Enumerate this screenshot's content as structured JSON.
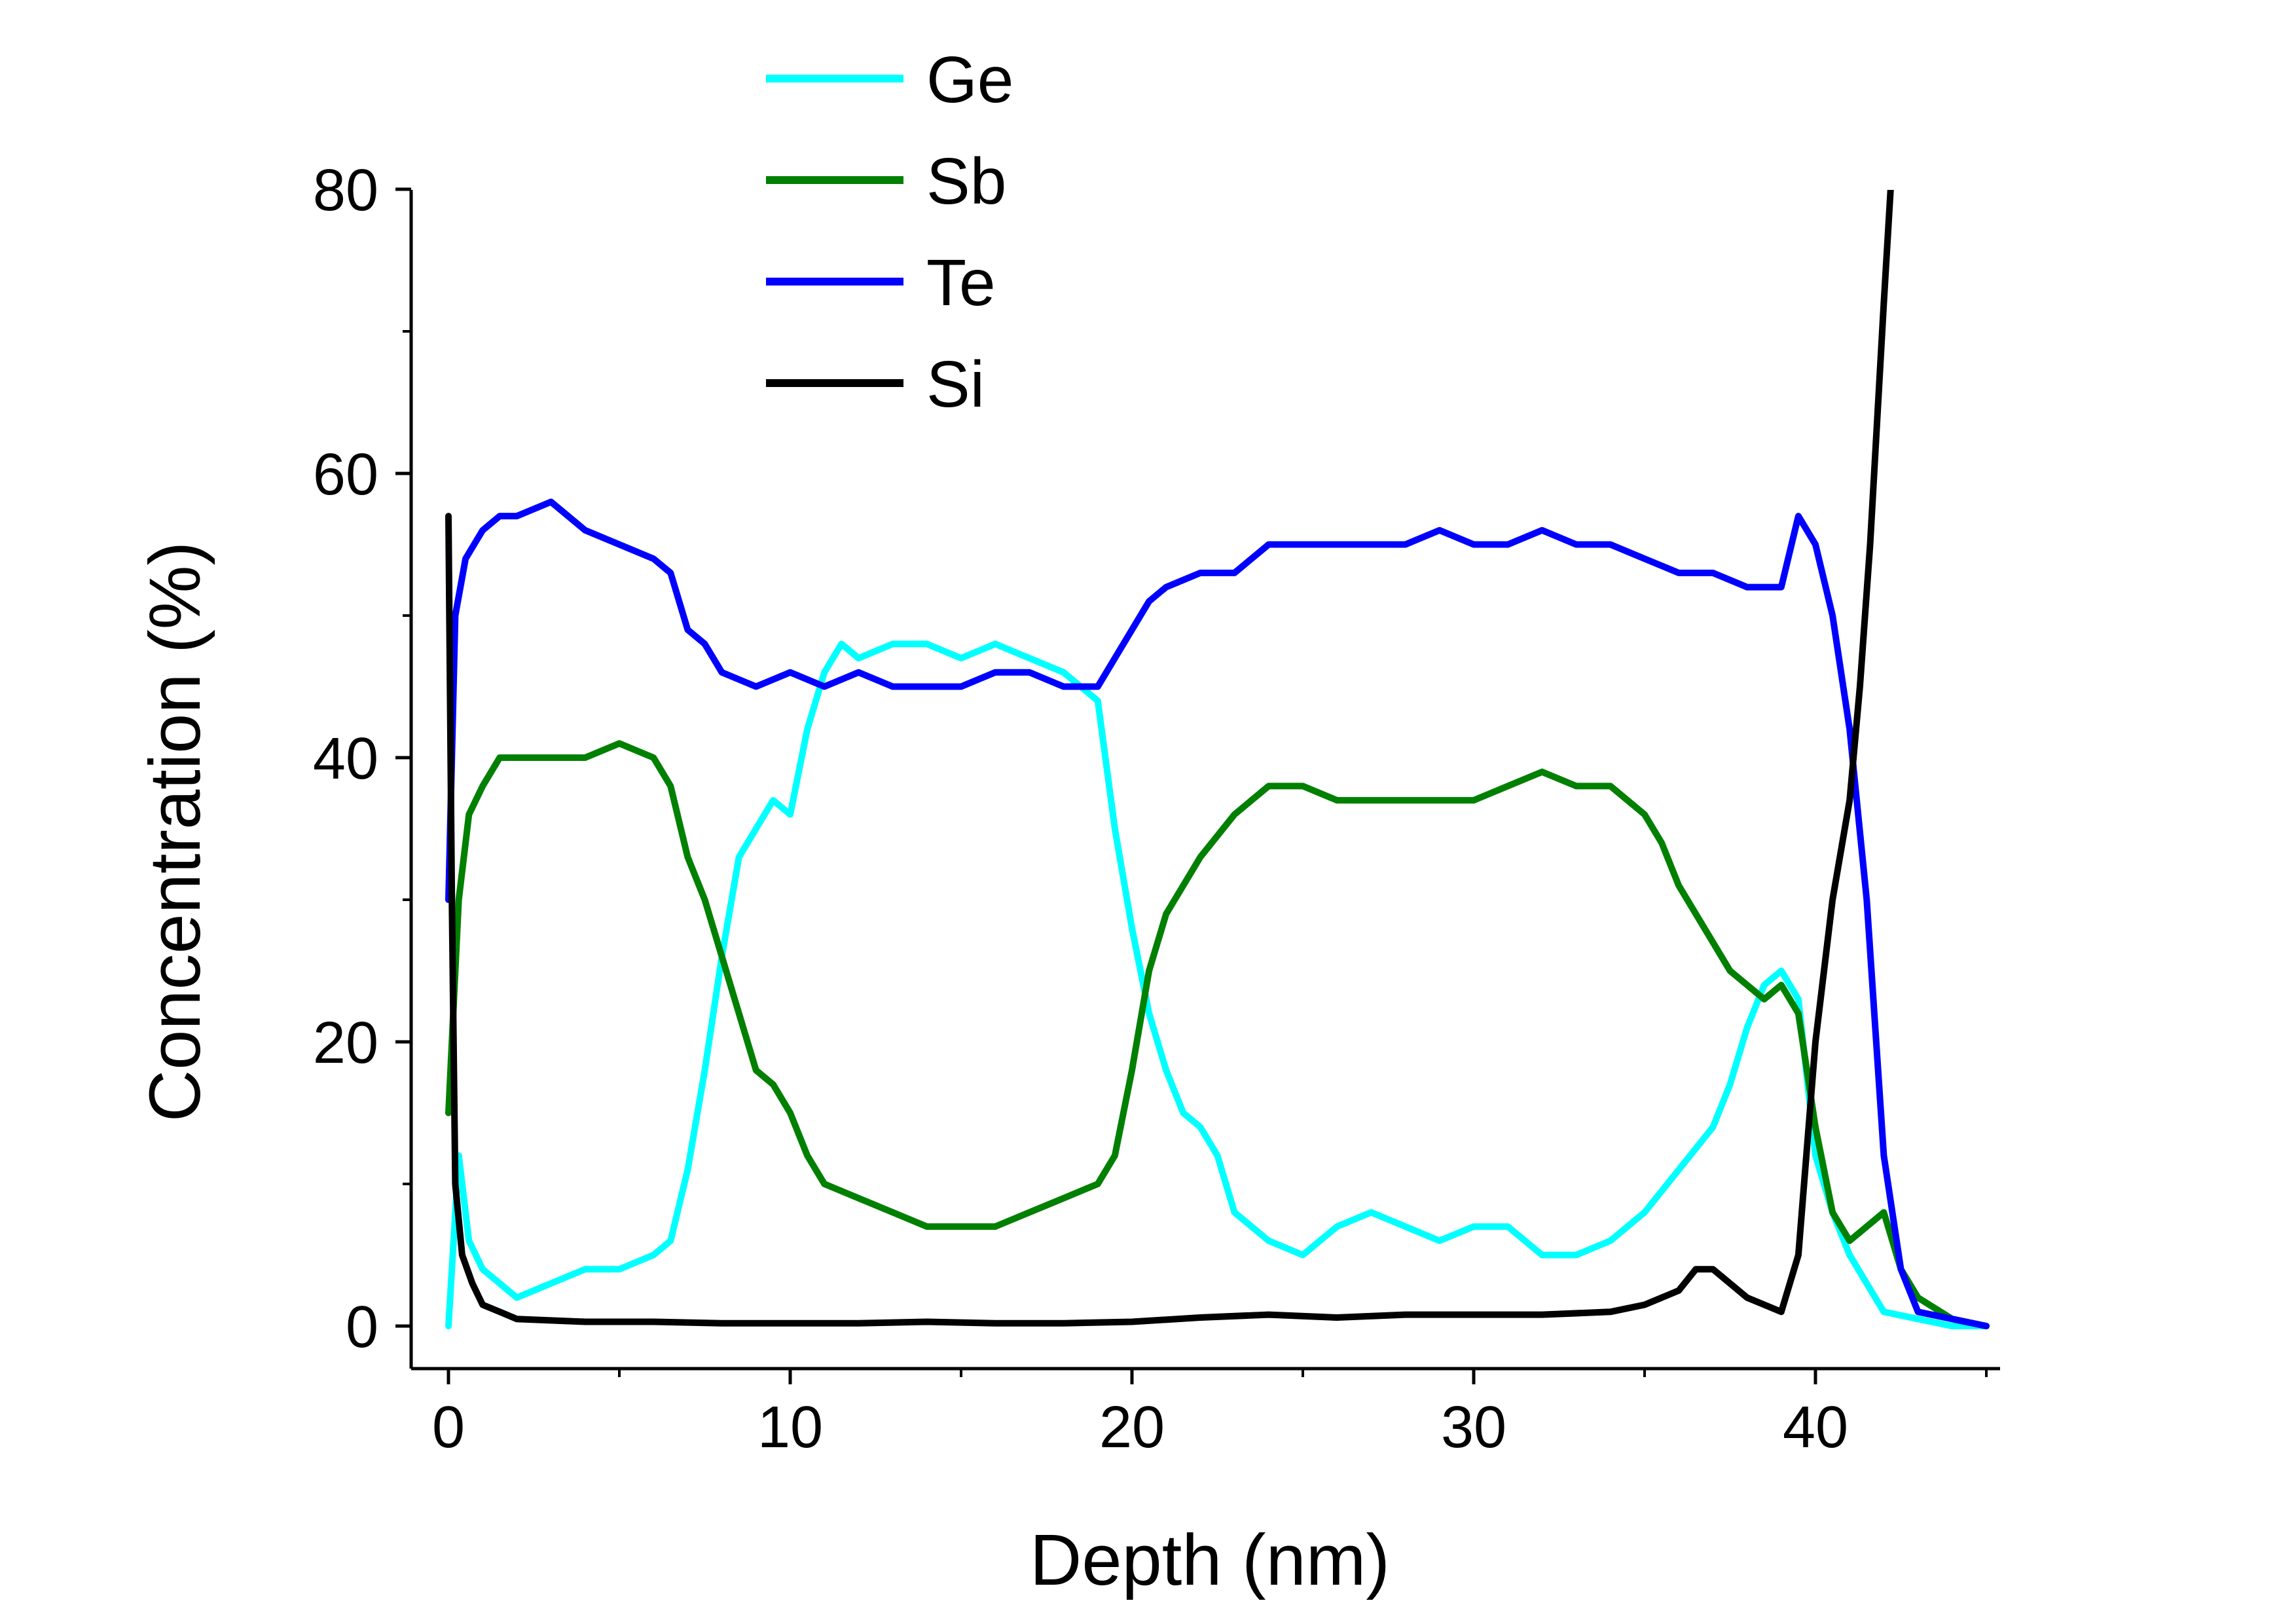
{
  "chart_data": {
    "type": "line",
    "title": "",
    "xlabel": "Depth (nm)",
    "ylabel": "Concentration (%)",
    "xlim": [
      -1,
      45
    ],
    "ylim": [
      -3,
      80
    ],
    "xticks": [
      0,
      10,
      20,
      30,
      40
    ],
    "xtick_labels": [
      "0",
      "10",
      "20",
      "30",
      "40"
    ],
    "yticks": [
      0,
      20,
      40,
      60,
      80
    ],
    "ytick_labels": [
      "0",
      "20",
      "40",
      "60",
      "80"
    ],
    "grid": false,
    "legend_position": "top-center",
    "series": [
      {
        "name": "Ge",
        "color": "#00FFFF",
        "x": [
          0,
          0.3,
          0.6,
          1,
          1.5,
          2,
          3,
          4,
          5,
          6,
          6.5,
          7,
          7.5,
          8,
          8.5,
          9,
          9.5,
          10,
          10.5,
          11,
          11.5,
          12,
          13,
          14,
          15,
          16,
          17,
          18,
          19,
          19.5,
          20,
          20.5,
          21,
          21.5,
          22,
          22.5,
          23,
          24,
          25,
          26,
          27,
          28,
          29,
          30,
          31,
          32,
          33,
          34,
          35,
          36,
          37,
          37.5,
          38,
          38.5,
          39,
          39.5,
          40,
          40.5,
          41,
          41.5,
          42,
          43,
          44,
          45
        ],
        "y": [
          0,
          12,
          6,
          4,
          3,
          2,
          3,
          4,
          4,
          5,
          6,
          11,
          18,
          26,
          33,
          35,
          37,
          36,
          42,
          46,
          48,
          47,
          48,
          48,
          47,
          48,
          47,
          46,
          44,
          35,
          28,
          22,
          18,
          15,
          14,
          12,
          8,
          6,
          5,
          7,
          8,
          7,
          6,
          7,
          7,
          5,
          5,
          6,
          8,
          11,
          14,
          17,
          21,
          24,
          25,
          23,
          12,
          8,
          5,
          3,
          1,
          0.5,
          0,
          0
        ]
      },
      {
        "name": "Sb",
        "color": "#008000",
        "x": [
          0,
          0.3,
          0.6,
          1,
          1.5,
          2,
          3,
          4,
          5,
          6,
          6.5,
          7,
          7.5,
          8,
          8.5,
          9,
          9.5,
          10,
          10.5,
          11,
          12,
          13,
          14,
          15,
          16,
          17,
          18,
          19,
          19.5,
          20,
          20.5,
          21,
          22,
          23,
          24,
          25,
          26,
          27,
          28,
          29,
          30,
          31,
          32,
          33,
          34,
          35,
          35.5,
          36,
          36.5,
          37,
          37.5,
          38,
          38.5,
          39,
          39.5,
          40,
          40.5,
          41,
          41.5,
          42,
          42.5,
          43,
          44,
          45
        ],
        "y": [
          15,
          30,
          36,
          38,
          40,
          40,
          40,
          40,
          41,
          40,
          38,
          33,
          30,
          26,
          22,
          18,
          17,
          15,
          12,
          10,
          9,
          8,
          7,
          7,
          7,
          8,
          9,
          10,
          12,
          18,
          25,
          29,
          33,
          36,
          38,
          38,
          37,
          37,
          37,
          37,
          37,
          38,
          39,
          38,
          38,
          36,
          34,
          31,
          29,
          27,
          25,
          24,
          23,
          24,
          22,
          14,
          8,
          6,
          7,
          8,
          4,
          2,
          0.5,
          0
        ]
      },
      {
        "name": "Te",
        "color": "#0000FF",
        "x": [
          0,
          0.2,
          0.5,
          1,
          1.5,
          2,
          3,
          4,
          5,
          6,
          6.5,
          7,
          7.5,
          8,
          9,
          10,
          11,
          12,
          13,
          14,
          15,
          16,
          17,
          18,
          19,
          19.5,
          20,
          20.5,
          21,
          22,
          23,
          24,
          25,
          26,
          27,
          28,
          29,
          30,
          31,
          32,
          33,
          34,
          35,
          36,
          37,
          38,
          39,
          39.5,
          40,
          40.5,
          41,
          41.5,
          42,
          42.5,
          43,
          44,
          45
        ],
        "y": [
          30,
          50,
          54,
          56,
          57,
          57,
          58,
          56,
          55,
          54,
          53,
          49,
          48,
          46,
          45,
          46,
          45,
          46,
          45,
          45,
          45,
          46,
          46,
          45,
          45,
          47,
          49,
          51,
          52,
          53,
          53,
          55,
          55,
          55,
          55,
          55,
          56,
          55,
          55,
          56,
          55,
          55,
          54,
          53,
          53,
          52,
          52,
          57,
          55,
          50,
          42,
          30,
          12,
          4,
          1,
          0.5,
          0
        ]
      },
      {
        "name": "Si",
        "color": "#000000",
        "x": [
          0,
          0.1,
          0.2,
          0.4,
          0.7,
          1,
          1.5,
          2,
          4,
          6,
          8,
          10,
          12,
          14,
          16,
          18,
          20,
          22,
          24,
          26,
          28,
          30,
          32,
          34,
          35,
          36,
          36.5,
          37,
          37.5,
          38,
          39,
          39.5,
          40,
          40.5,
          41,
          41.3,
          41.6,
          42,
          42.2
        ],
        "y": [
          57,
          30,
          10,
          5,
          3,
          1.5,
          1,
          0.5,
          0.3,
          0.3,
          0.2,
          0.2,
          0.2,
          0.3,
          0.2,
          0.2,
          0.3,
          0.6,
          0.8,
          0.6,
          0.8,
          0.8,
          0.8,
          1,
          1.5,
          2.5,
          4,
          4,
          3,
          2,
          1,
          5,
          20,
          30,
          37,
          45,
          55,
          72,
          80
        ]
      }
    ]
  }
}
